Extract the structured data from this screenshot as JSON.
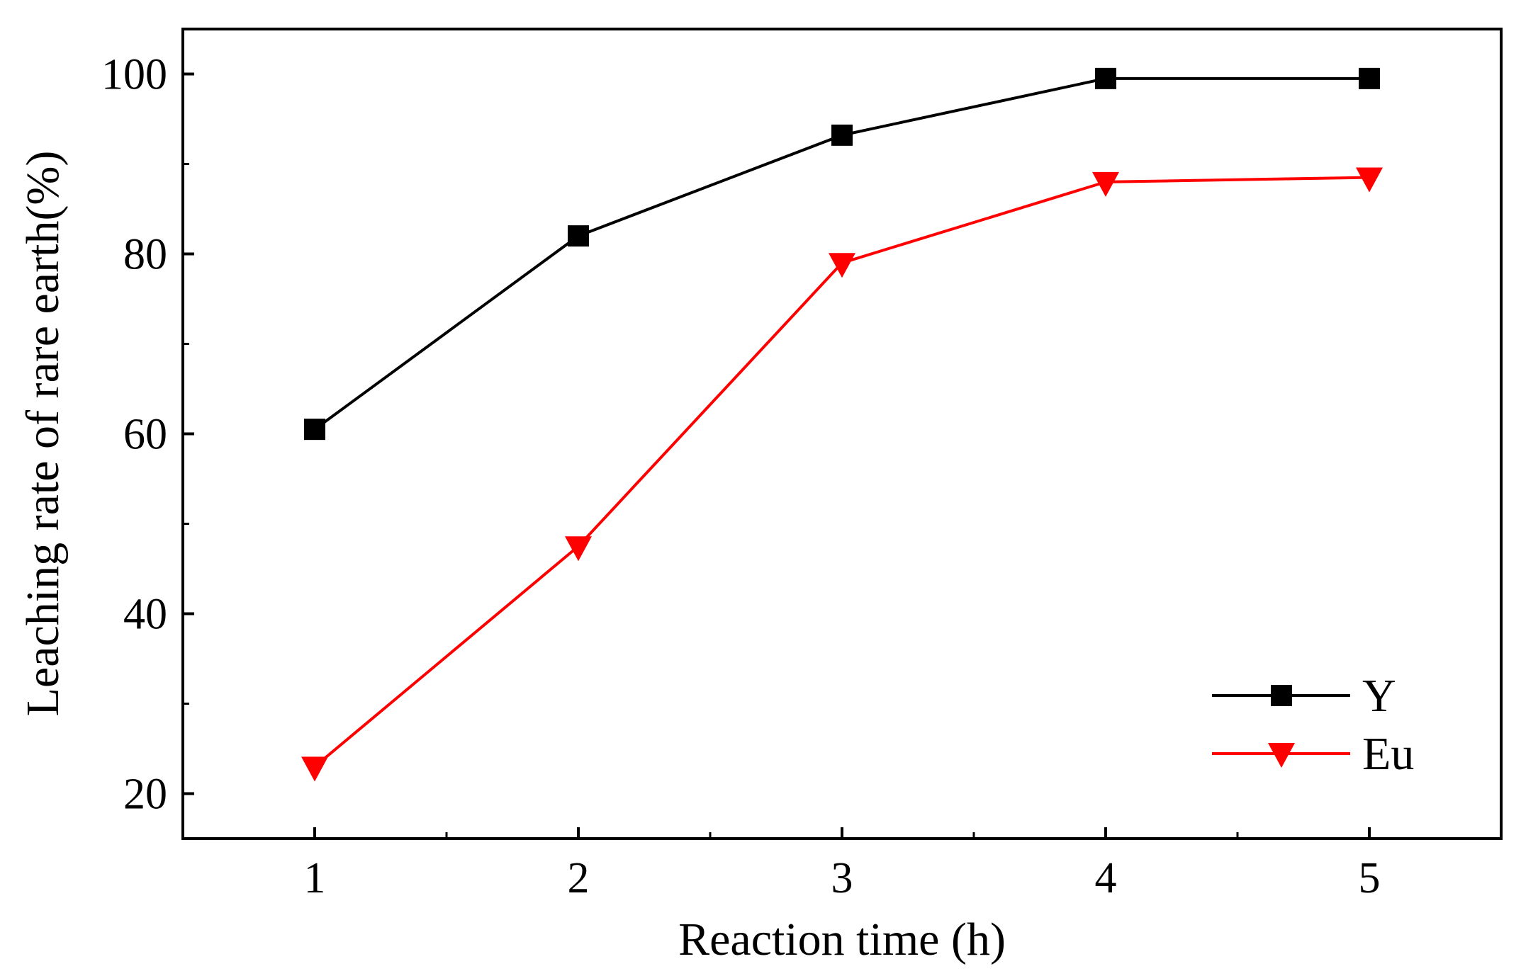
{
  "chart_data": {
    "type": "line",
    "title": "",
    "xlabel": "Reaction time (h)",
    "ylabel": "Leaching rate of rare earth(%)",
    "x": [
      1,
      2,
      3,
      4,
      5
    ],
    "xlim": [
      0.5,
      5.5
    ],
    "ylim": [
      15,
      105
    ],
    "xticks": [
      "1",
      "2",
      "3",
      "4",
      "5"
    ],
    "yticks": [
      20,
      40,
      60,
      80,
      100
    ],
    "ytick_labels": [
      "20",
      "40",
      "60",
      "80",
      "100"
    ],
    "grid": false,
    "legend_position": "bottom-right",
    "series": [
      {
        "name": "Y",
        "values": [
          60.5,
          82.0,
          93.2,
          99.5,
          99.5
        ],
        "color": "#000000",
        "marker": "square"
      },
      {
        "name": "Eu",
        "values": [
          23.0,
          47.5,
          79.0,
          88.0,
          88.5
        ],
        "color": "#ff0000",
        "marker": "triangle-down"
      }
    ]
  }
}
